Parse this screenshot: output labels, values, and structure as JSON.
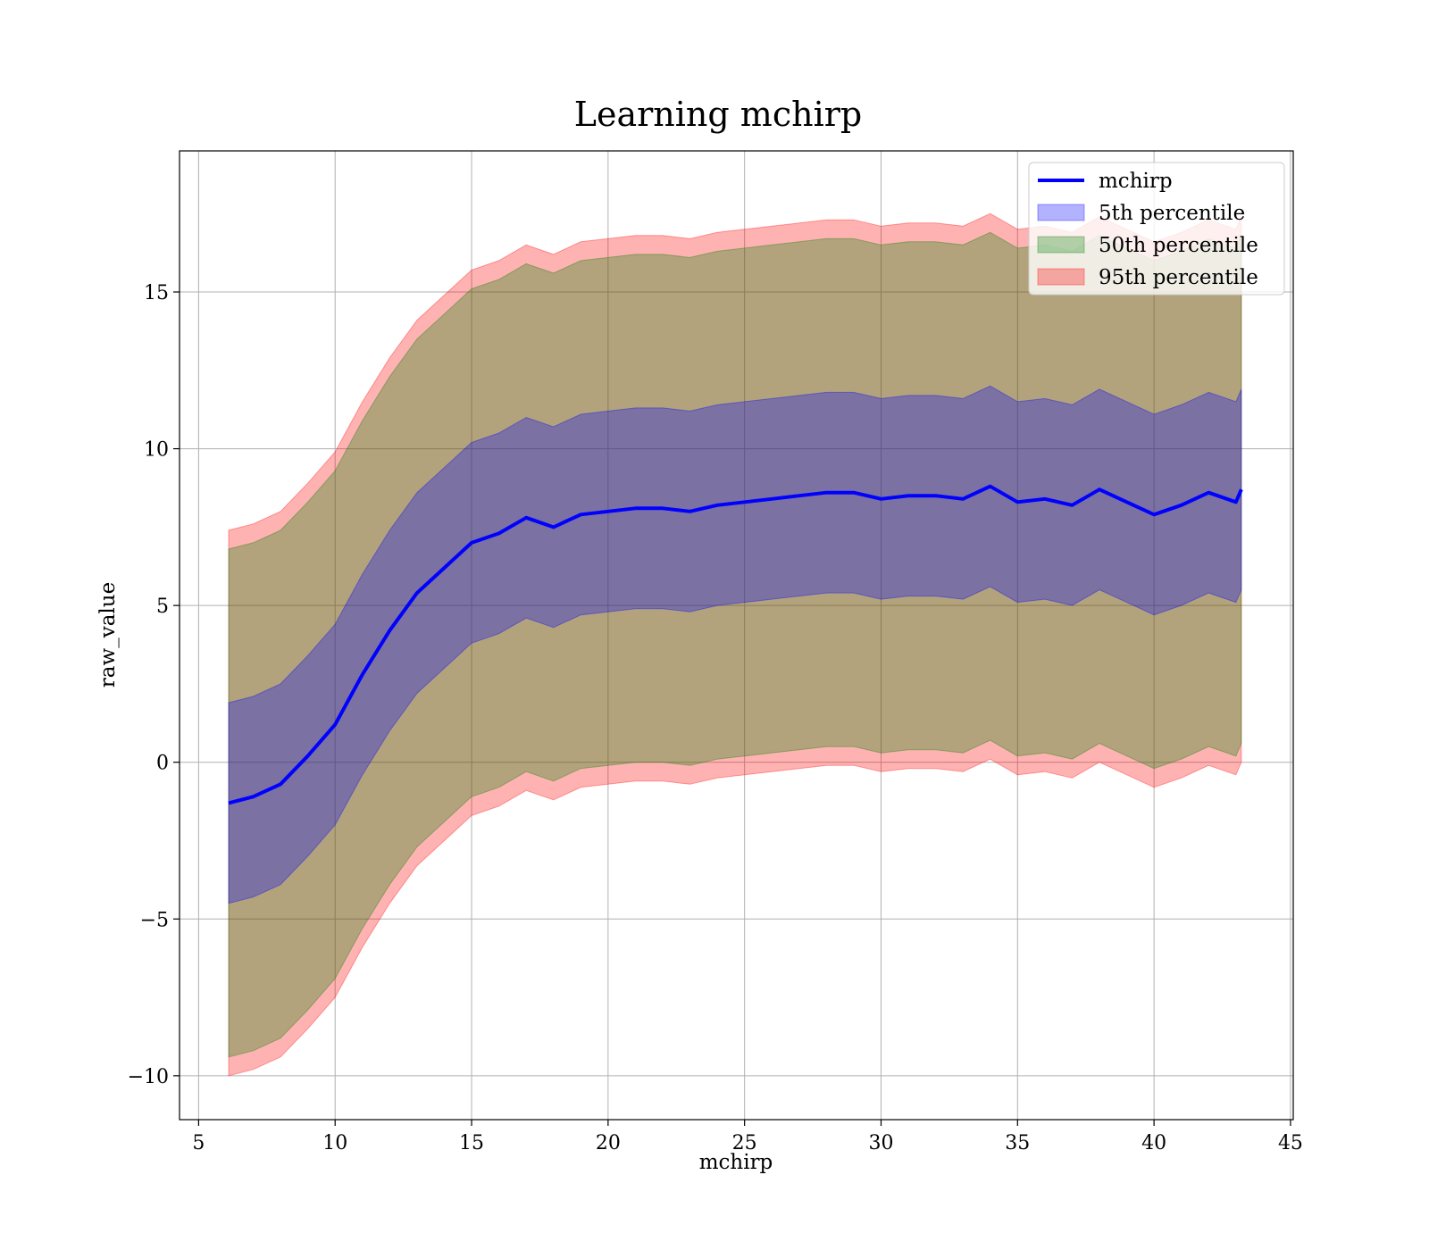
{
  "chart_data": {
    "type": "line",
    "title": "Learning mchirp",
    "xlabel": "mchirp",
    "ylabel": "raw_value",
    "xlim": [
      4.3,
      45.1
    ],
    "ylim": [
      -11.4,
      19.5
    ],
    "xticks": [
      5,
      10,
      15,
      20,
      25,
      30,
      35,
      40,
      45
    ],
    "xtick_labels": [
      "5",
      "10",
      "15",
      "20",
      "25",
      "30",
      "35",
      "40",
      "45"
    ],
    "yticks": [
      -10,
      -5,
      0,
      5,
      10,
      15
    ],
    "ytick_labels": [
      "−10",
      "−5",
      "0",
      "5",
      "10",
      "15"
    ],
    "grid": true,
    "legend_position": "top-right",
    "colors": {
      "line": "#0000ff",
      "p5": "#0000ff",
      "p50": "#008000",
      "p95": "#ff0000"
    },
    "legend": [
      {
        "label": "mchirp",
        "kind": "line",
        "key": "line"
      },
      {
        "label": "5th percentile",
        "kind": "patch",
        "key": "p5"
      },
      {
        "label": "50th percentile",
        "kind": "patch",
        "key": "p50"
      },
      {
        "label": "95th percentile",
        "kind": "patch",
        "key": "p95"
      }
    ],
    "x": [
      6.1,
      7,
      8,
      9,
      10,
      11,
      12,
      13,
      14,
      15,
      16,
      17,
      18,
      19,
      20,
      21,
      22,
      23,
      24,
      25,
      26,
      27,
      28,
      29,
      30,
      31,
      32,
      33,
      34,
      35,
      36,
      37,
      38,
      39,
      40,
      41,
      42,
      43,
      43.2
    ],
    "series": [
      {
        "name": "mchirp",
        "values": [
          -1.3,
          -1.1,
          -0.7,
          0.2,
          1.2,
          2.8,
          4.2,
          5.4,
          6.2,
          7.0,
          7.3,
          7.8,
          7.5,
          7.9,
          8.0,
          8.1,
          8.1,
          8.0,
          8.2,
          8.3,
          8.4,
          8.5,
          8.6,
          8.6,
          8.4,
          8.5,
          8.5,
          8.4,
          8.8,
          8.3,
          8.4,
          8.2,
          8.7,
          8.3,
          7.9,
          8.2,
          8.6,
          8.3,
          8.7
        ]
      },
      {
        "name": "5th percentile",
        "lower": [
          -4.5,
          -4.3,
          -3.9,
          -3.0,
          -2.0,
          -0.4,
          1.0,
          2.2,
          3.0,
          3.8,
          4.1,
          4.6,
          4.3,
          4.7,
          4.8,
          4.9,
          4.9,
          4.8,
          5.0,
          5.1,
          5.2,
          5.3,
          5.4,
          5.4,
          5.2,
          5.3,
          5.3,
          5.2,
          5.6,
          5.1,
          5.2,
          5.0,
          5.5,
          5.1,
          4.7,
          5.0,
          5.4,
          5.1,
          5.5
        ],
        "upper": [
          1.9,
          2.1,
          2.5,
          3.4,
          4.4,
          6.0,
          7.4,
          8.6,
          9.4,
          10.2,
          10.5,
          11.0,
          10.7,
          11.1,
          11.2,
          11.3,
          11.3,
          11.2,
          11.4,
          11.5,
          11.6,
          11.7,
          11.8,
          11.8,
          11.6,
          11.7,
          11.7,
          11.6,
          12.0,
          11.5,
          11.6,
          11.4,
          11.9,
          11.5,
          11.1,
          11.4,
          11.8,
          11.5,
          11.9
        ]
      },
      {
        "name": "50th percentile",
        "lower": [
          -9.4,
          -9.2,
          -8.8,
          -7.9,
          -6.9,
          -5.3,
          -3.9,
          -2.7,
          -1.9,
          -1.1,
          -0.8,
          -0.3,
          -0.6,
          -0.2,
          -0.1,
          0.0,
          0.0,
          -0.1,
          0.1,
          0.2,
          0.3,
          0.4,
          0.5,
          0.5,
          0.3,
          0.4,
          0.4,
          0.3,
          0.7,
          0.2,
          0.3,
          0.1,
          0.6,
          0.2,
          -0.2,
          0.1,
          0.5,
          0.2,
          0.6
        ],
        "upper": [
          6.8,
          7.0,
          7.4,
          8.3,
          9.3,
          10.9,
          12.3,
          13.5,
          14.3,
          15.1,
          15.4,
          15.9,
          15.6,
          16.0,
          16.1,
          16.2,
          16.2,
          16.1,
          16.3,
          16.4,
          16.5,
          16.6,
          16.7,
          16.7,
          16.5,
          16.6,
          16.6,
          16.5,
          16.9,
          16.4,
          16.5,
          16.3,
          16.8,
          16.4,
          16.0,
          16.3,
          16.7,
          16.4,
          16.8
        ]
      },
      {
        "name": "95th percentile",
        "lower": [
          -10.0,
          -9.8,
          -9.4,
          -8.5,
          -7.5,
          -5.9,
          -4.5,
          -3.3,
          -2.5,
          -1.7,
          -1.4,
          -0.9,
          -1.2,
          -0.8,
          -0.7,
          -0.6,
          -0.6,
          -0.7,
          -0.5,
          -0.4,
          -0.3,
          -0.2,
          -0.1,
          -0.1,
          -0.3,
          -0.2,
          -0.2,
          -0.3,
          0.1,
          -0.4,
          -0.3,
          -0.5,
          0.0,
          -0.4,
          -0.8,
          -0.5,
          -0.1,
          -0.4,
          0.0
        ],
        "upper": [
          7.4,
          7.6,
          8.0,
          8.9,
          9.9,
          11.5,
          12.9,
          14.1,
          14.9,
          15.7,
          16.0,
          16.5,
          16.2,
          16.6,
          16.7,
          16.8,
          16.8,
          16.7,
          16.9,
          17.0,
          17.1,
          17.2,
          17.3,
          17.3,
          17.1,
          17.2,
          17.2,
          17.1,
          17.5,
          17.0,
          17.1,
          16.9,
          17.4,
          17.0,
          16.6,
          16.9,
          17.3,
          17.0,
          17.4
        ]
      }
    ]
  }
}
